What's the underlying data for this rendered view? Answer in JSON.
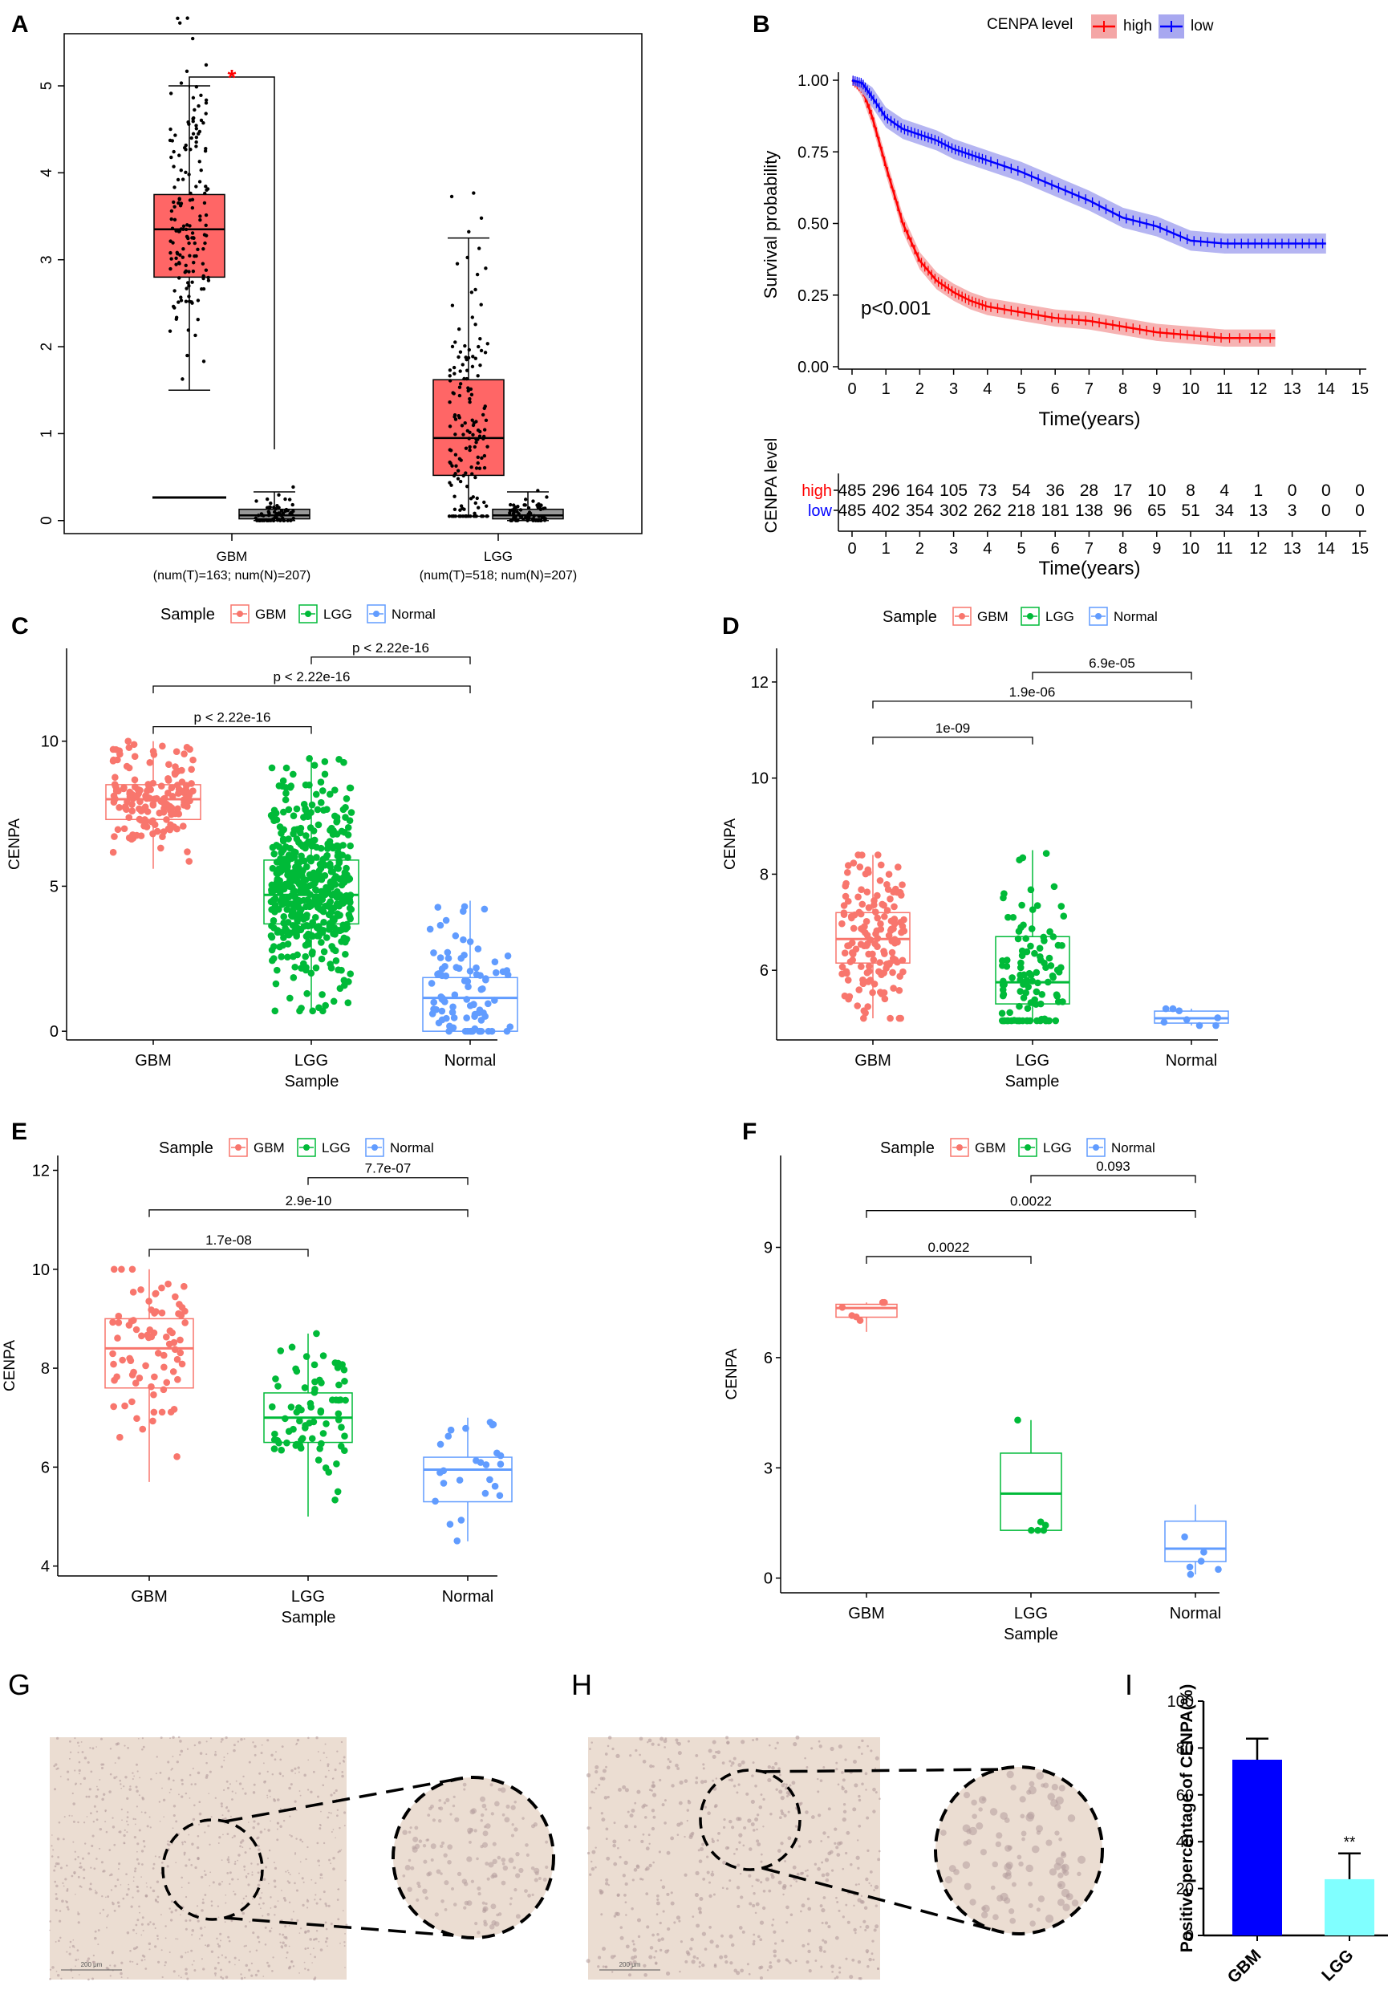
{
  "colors": {
    "gbm": "#F8766D",
    "lgg": "#00BA38",
    "normal": "#619CFF",
    "box_red": "#FF6666",
    "km_high": "#FF0000",
    "km_low": "#0000FF",
    "km_high_band": "#F4A6A6",
    "km_low_band": "#A8A8F0",
    "bar_gbm": "#0000FF",
    "bar_lgg": "#80FFFF",
    "sig": "#FF0000",
    "tissue": "#EBDDD2",
    "tissue_dot": "#B49C9C"
  },
  "chart_data": [
    {
      "panel": "A",
      "type": "box",
      "ylim": [
        -0.15,
        5.6
      ],
      "yticks": [
        0,
        1,
        2,
        3,
        4,
        5
      ],
      "groups": [
        {
          "name": "GBM",
          "sub": "(num(T)=163; num(N)=207)",
          "tumor": {
            "min": 1.5,
            "q1": 2.8,
            "median": 3.35,
            "q3": 3.75,
            "max": 5.0
          },
          "normal": {
            "min": 0.0,
            "q1": 0.02,
            "median": 0.06,
            "q3": 0.13,
            "max": 0.33
          }
        },
        {
          "name": "LGG",
          "sub": "(num(T)=518; num(N)=207)",
          "tumor": {
            "min": 0.05,
            "q1": 0.52,
            "median": 0.95,
            "q3": 1.62,
            "max": 3.25
          },
          "normal": {
            "min": 0.0,
            "q1": 0.02,
            "median": 0.06,
            "q3": 0.13,
            "max": 0.33
          }
        }
      ],
      "significance": "*"
    },
    {
      "panel": "B",
      "type": "line",
      "title": "CENPA level",
      "legend": [
        "high",
        "low"
      ],
      "xlabel": "Time(years)",
      "ylabel": "Survival probability",
      "xlim": [
        0,
        15
      ],
      "ylim": [
        0,
        1
      ],
      "xticks": [
        0,
        1,
        2,
        3,
        4,
        5,
        6,
        7,
        8,
        9,
        10,
        11,
        12,
        13,
        14,
        15
      ],
      "yticks": [
        "0.00",
        "0.25",
        "0.50",
        "0.75",
        "1.00"
      ],
      "pvalue": "p<0.001",
      "series": [
        {
          "name": "high",
          "x": [
            0,
            0.3,
            0.6,
            1,
            1.5,
            2,
            2.5,
            3,
            3.5,
            4,
            5,
            6,
            7,
            8,
            9,
            10,
            11,
            12.5
          ],
          "y": [
            1,
            0.97,
            0.87,
            0.7,
            0.5,
            0.37,
            0.3,
            0.26,
            0.23,
            0.21,
            0.19,
            0.17,
            0.16,
            0.14,
            0.12,
            0.11,
            0.1,
            0.1
          ]
        },
        {
          "name": "low",
          "x": [
            0,
            0.3,
            0.6,
            1,
            1.5,
            2,
            2.5,
            3,
            3.5,
            4,
            5,
            6,
            7,
            8,
            9,
            10,
            11,
            12,
            13,
            14
          ],
          "y": [
            1,
            0.99,
            0.94,
            0.87,
            0.83,
            0.81,
            0.79,
            0.76,
            0.74,
            0.72,
            0.68,
            0.63,
            0.58,
            0.52,
            0.49,
            0.44,
            0.43,
            0.43,
            0.43,
            0.43
          ]
        }
      ],
      "risk_table": {
        "title": "CENPA level",
        "xlabel": "Time(years)",
        "rows": [
          {
            "label": "high",
            "values": [
              "485",
              "296",
              "164",
              "105",
              "73",
              "54",
              "36",
              "28",
              "17",
              "10",
              "8",
              "4",
              "1",
              "0",
              "0",
              "0"
            ]
          },
          {
            "label": "low",
            "values": [
              "485",
              "402",
              "354",
              "302",
              "262",
              "218",
              "181",
              "138",
              "96",
              "65",
              "51",
              "34",
              "13",
              "3",
              "0",
              "0"
            ]
          }
        ]
      }
    },
    {
      "panel": "C",
      "type": "box",
      "legend_title": "Sample",
      "legend": [
        "GBM",
        "LGG",
        "Normal"
      ],
      "xlabel": "Sample",
      "ylabel": "CENPA",
      "ylim": [
        -0.3,
        13.2
      ],
      "yticks": [
        0,
        5,
        10
      ],
      "groups": [
        {
          "name": "GBM",
          "min": 5.6,
          "q1": 7.3,
          "median": 8.0,
          "q3": 8.5,
          "max": 10.0
        },
        {
          "name": "LGG",
          "min": 0.7,
          "q1": 3.7,
          "median": 4.7,
          "q3": 5.9,
          "max": 9.5
        },
        {
          "name": "Normal",
          "min": 0.0,
          "q1": 0.0,
          "median": 1.15,
          "q3": 1.85,
          "max": 4.5
        }
      ],
      "comparisons": [
        {
          "from": 0,
          "to": 1,
          "label": "p < 2.22e-16",
          "y": 10.5
        },
        {
          "from": 0,
          "to": 2,
          "label": "p < 2.22e-16",
          "y": 11.9
        },
        {
          "from": 1,
          "to": 2,
          "label": "p < 2.22e-16",
          "y": 12.9
        }
      ]
    },
    {
      "panel": "D",
      "type": "box",
      "legend_title": "Sample",
      "legend": [
        "GBM",
        "LGG",
        "Normal"
      ],
      "xlabel": "Sample",
      "ylabel": "CENPA",
      "ylim": [
        4.55,
        12.7
      ],
      "yticks": [
        6,
        8,
        10,
        12
      ],
      "groups": [
        {
          "name": "GBM",
          "min": 5.0,
          "q1": 6.15,
          "median": 6.65,
          "q3": 7.2,
          "max": 8.4
        },
        {
          "name": "LGG",
          "min": 4.95,
          "q1": 5.3,
          "median": 5.75,
          "q3": 6.7,
          "max": 8.5
        },
        {
          "name": "Normal",
          "min": 4.85,
          "q1": 4.9,
          "median": 5.0,
          "q3": 5.15,
          "max": 5.2
        }
      ],
      "comparisons": [
        {
          "from": 0,
          "to": 1,
          "label": "1e-09",
          "y": 10.85
        },
        {
          "from": 0,
          "to": 2,
          "label": "1.9e-06",
          "y": 11.6
        },
        {
          "from": 1,
          "to": 2,
          "label": "6.9e-05",
          "y": 12.2
        }
      ]
    },
    {
      "panel": "E",
      "type": "box",
      "legend_title": "Sample",
      "legend": [
        "GBM",
        "LGG",
        "Normal"
      ],
      "xlabel": "Sample",
      "ylabel": "CENPA",
      "ylim": [
        3.8,
        12.3
      ],
      "yticks": [
        4,
        6,
        8,
        10,
        12
      ],
      "groups": [
        {
          "name": "GBM",
          "min": 5.7,
          "q1": 7.6,
          "median": 8.4,
          "q3": 9.0,
          "max": 10.0
        },
        {
          "name": "LGG",
          "min": 5.0,
          "q1": 6.5,
          "median": 7.0,
          "q3": 7.5,
          "max": 8.7
        },
        {
          "name": "Normal",
          "min": 4.5,
          "q1": 5.3,
          "median": 5.95,
          "q3": 6.2,
          "max": 7.0
        }
      ],
      "comparisons": [
        {
          "from": 0,
          "to": 1,
          "label": "1.7e-08",
          "y": 10.4
        },
        {
          "from": 0,
          "to": 2,
          "label": "2.9e-10",
          "y": 11.2
        },
        {
          "from": 1,
          "to": 2,
          "label": "7.7e-07",
          "y": 11.85
        }
      ]
    },
    {
      "panel": "F",
      "type": "box",
      "legend_title": "Sample",
      "legend": [
        "GBM",
        "LGG",
        "Normal"
      ],
      "xlabel": "Sample",
      "ylabel": "CENPA",
      "ylim": [
        -0.4,
        11.5
      ],
      "yticks": [
        0,
        3,
        6,
        9
      ],
      "groups": [
        {
          "name": "GBM",
          "min": 6.7,
          "q1": 7.1,
          "median": 7.35,
          "q3": 7.45,
          "max": 7.5
        },
        {
          "name": "LGG",
          "min": 1.3,
          "q1": 1.3,
          "median": 2.3,
          "q3": 3.4,
          "max": 4.3
        },
        {
          "name": "Normal",
          "min": 0.1,
          "q1": 0.45,
          "median": 0.8,
          "q3": 1.55,
          "max": 2.0
        }
      ],
      "comparisons": [
        {
          "from": 0,
          "to": 1,
          "label": "0.0022",
          "y": 8.75
        },
        {
          "from": 0,
          "to": 2,
          "label": "0.0022",
          "y": 10.0
        },
        {
          "from": 1,
          "to": 2,
          "label": "0.093",
          "y": 10.95
        }
      ]
    },
    {
      "panel": "I",
      "type": "bar",
      "ylabel": "Positive percentage of CENPA(%)",
      "categories": [
        "GBM",
        "LGG"
      ],
      "values": [
        75,
        24
      ],
      "errors": [
        9,
        11
      ],
      "ylim": [
        0,
        100
      ],
      "yticks": [
        0,
        20,
        40,
        60,
        80,
        100
      ],
      "annotations": [
        "",
        "**"
      ]
    }
  ],
  "panel_letters": {
    "a": "A",
    "b": "B",
    "c": "C",
    "d": "D",
    "e": "E",
    "f": "F",
    "g": "G",
    "h": "H",
    "i": "I"
  },
  "scale_bar_label": "200 μm"
}
